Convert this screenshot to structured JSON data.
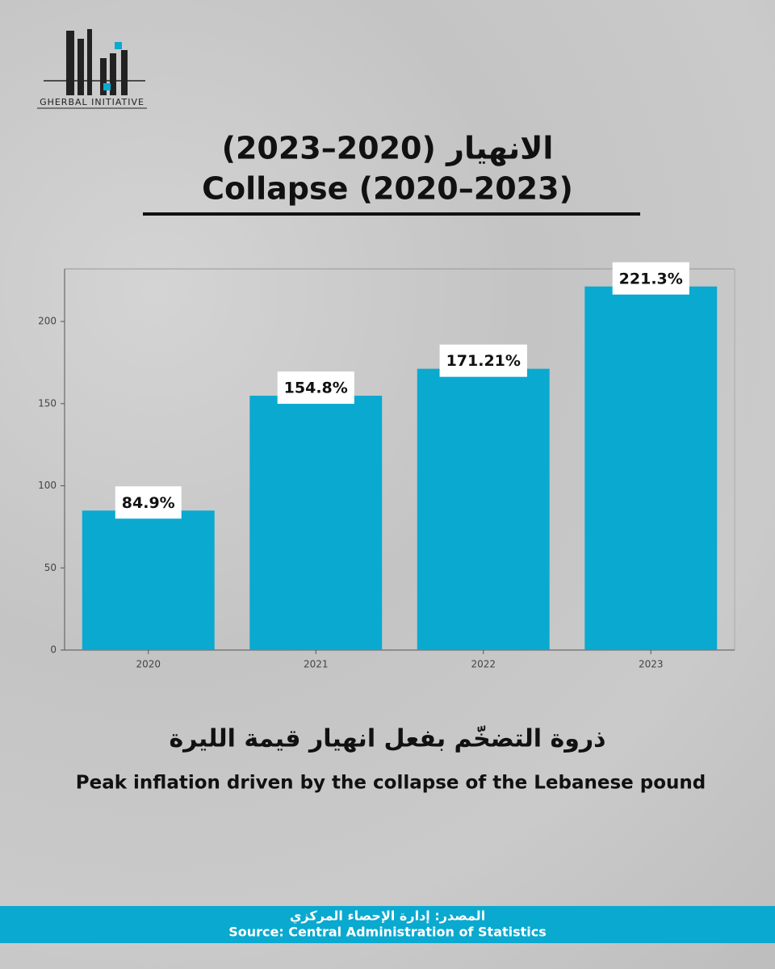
{
  "logo_text": "GHERBAL INITIATIVE",
  "title_ar": "الانهيار (2020–2023)",
  "title_en": "Collapse (2020–2023)",
  "subtitle_ar": "ذروة التضخّم بفعل انهيار قيمة الليرة",
  "subtitle_en": "Peak inflation driven by the collapse of the Lebanese pound",
  "source_ar": "المصدر: إدارة الإحصاء المركزي",
  "source_en": "Source: Central Administration of Statistics",
  "chart_data": {
    "type": "bar",
    "categories": [
      "2020",
      "2021",
      "2022",
      "2023"
    ],
    "values": [
      84.9,
      154.8,
      171.21,
      221.3
    ],
    "value_labels": [
      "84.9%",
      "154.8%",
      "171.21%",
      "221.3%"
    ],
    "color": "#0aa9d0",
    "ylim": [
      0,
      232
    ],
    "yticks": [
      0,
      50,
      100,
      150,
      200
    ]
  }
}
